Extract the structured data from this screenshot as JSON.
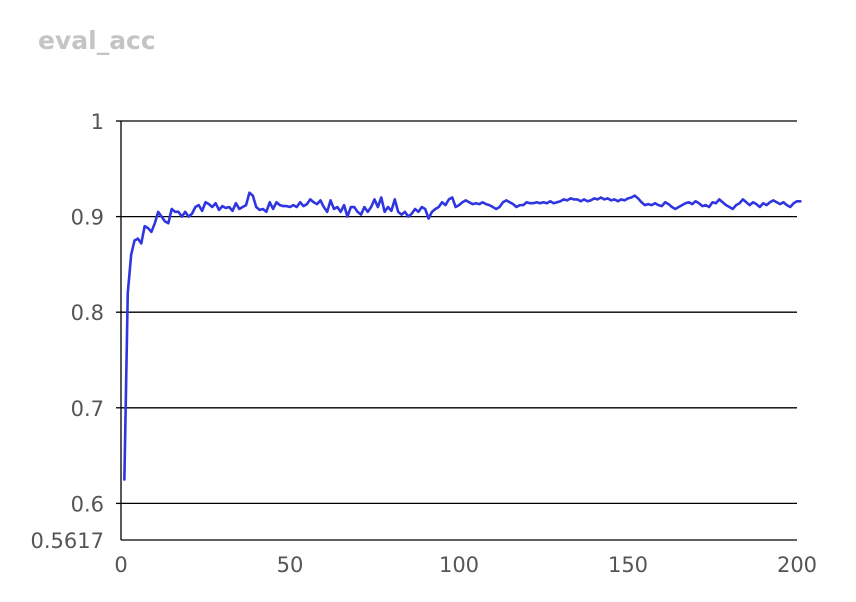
{
  "chart_data": {
    "type": "line",
    "title": "eval_acc",
    "xlim": [
      0,
      200
    ],
    "ylim": [
      0.5617,
      1.0
    ],
    "xticks": [
      "0",
      "50",
      "100",
      "150",
      "200"
    ],
    "xtick_values": [
      0,
      50,
      100,
      150,
      200
    ],
    "yticks": [
      "0.5617",
      "0.6",
      "0.7",
      "0.8",
      "0.9",
      "1"
    ],
    "ytick_values": [
      0.5617,
      0.6,
      0.7,
      0.8,
      0.9,
      1.0
    ],
    "grid": "horizontal",
    "line_color": "#2f36e0",
    "series": [
      {
        "values": [
          0.625,
          0.82,
          0.86,
          0.875,
          0.877,
          0.872,
          0.89,
          0.888,
          0.884,
          0.893,
          0.905,
          0.9,
          0.895,
          0.893,
          0.908,
          0.905,
          0.905,
          0.9,
          0.905,
          0.9,
          0.903,
          0.91,
          0.912,
          0.906,
          0.915,
          0.913,
          0.91,
          0.914,
          0.907,
          0.911,
          0.909,
          0.91,
          0.906,
          0.914,
          0.908,
          0.91,
          0.912,
          0.925,
          0.922,
          0.91,
          0.907,
          0.908,
          0.905,
          0.915,
          0.908,
          0.915,
          0.912,
          0.911,
          0.911,
          0.91,
          0.912,
          0.91,
          0.915,
          0.911,
          0.913,
          0.918,
          0.915,
          0.913,
          0.917,
          0.91,
          0.905,
          0.917,
          0.908,
          0.91,
          0.905,
          0.912,
          0.9,
          0.91,
          0.91,
          0.905,
          0.902,
          0.91,
          0.905,
          0.91,
          0.918,
          0.91,
          0.92,
          0.905,
          0.91,
          0.906,
          0.918,
          0.905,
          0.902,
          0.905,
          0.9,
          0.903,
          0.908,
          0.905,
          0.91,
          0.908,
          0.898,
          0.905,
          0.908,
          0.91,
          0.915,
          0.912,
          0.918,
          0.92,
          0.91,
          0.912,
          0.915,
          0.917,
          0.915,
          0.913,
          0.914,
          0.913,
          0.915,
          0.913,
          0.912,
          0.91,
          0.908,
          0.91,
          0.915,
          0.917,
          0.915,
          0.913,
          0.91,
          0.912,
          0.912,
          0.915,
          0.914,
          0.914,
          0.915,
          0.914,
          0.915,
          0.914,
          0.916,
          0.914,
          0.915,
          0.916,
          0.918,
          0.917,
          0.919,
          0.918,
          0.918,
          0.916,
          0.918,
          0.916,
          0.917,
          0.919,
          0.918,
          0.92,
          0.918,
          0.919,
          0.917,
          0.918,
          0.916,
          0.918,
          0.917,
          0.919,
          0.92,
          0.922,
          0.919,
          0.915,
          0.912,
          0.913,
          0.912,
          0.914,
          0.912,
          0.911,
          0.915,
          0.913,
          0.91,
          0.908,
          0.91,
          0.912,
          0.914,
          0.915,
          0.913,
          0.916,
          0.914,
          0.911,
          0.912,
          0.91,
          0.915,
          0.914,
          0.918,
          0.915,
          0.912,
          0.91,
          0.908,
          0.912,
          0.914,
          0.918,
          0.915,
          0.912,
          0.915,
          0.913,
          0.91,
          0.914,
          0.912,
          0.915,
          0.917,
          0.915,
          0.913,
          0.915,
          0.912,
          0.91,
          0.914,
          0.916,
          0.916
        ]
      }
    ]
  }
}
